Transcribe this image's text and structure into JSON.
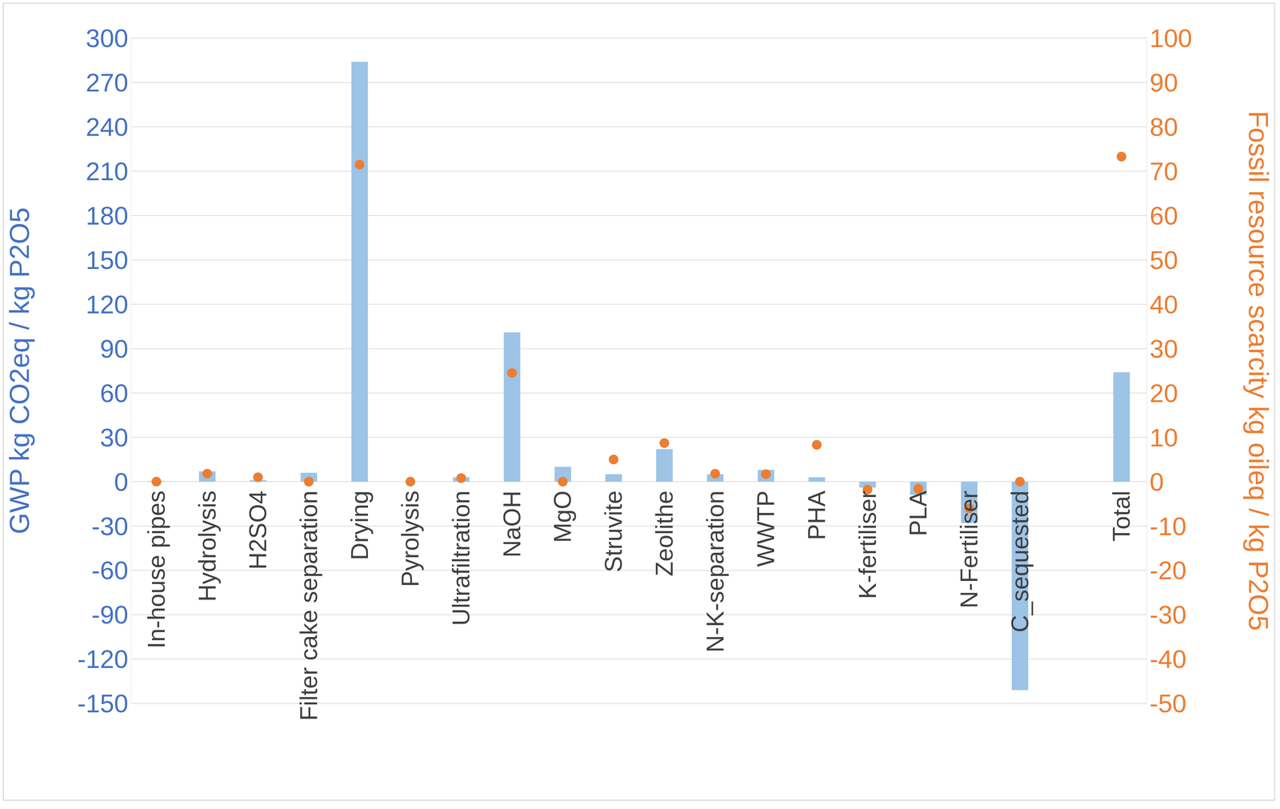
{
  "chart_data": {
    "type": "bar",
    "categories": [
      "In-house pipes",
      "Hydrolysis",
      "H2SO4",
      "Filter cake separation",
      "Drying",
      "Pyrolysis",
      "Ultrafiltration",
      "NaOH",
      "MgO",
      "Struvite",
      "Zeolithe",
      "N-K-separation",
      "WWTP",
      "PHA",
      "K-fertiliser",
      "PLA",
      "N-Fertiliser",
      "C_sequested",
      null,
      "Total"
    ],
    "y_label": "GWP kg CO2eq / kg P2O5",
    "y2_label": "Fossil resource scarcity kg oileq / kg P2O5",
    "series": [
      {
        "name": "GWP kg CO2eq / kg P2O5",
        "type": "bar",
        "color": "#9dc3e6",
        "values": [
          0.5,
          7,
          1,
          6,
          284,
          0,
          3,
          101,
          10,
          5,
          22,
          5,
          8,
          3,
          -4,
          -9,
          -28,
          -141,
          null,
          74
        ]
      },
      {
        "name": "Fossil resource scarcity kg oileq / kg P2O5",
        "type": "scatter",
        "marker": "circle",
        "axis": "y2",
        "color": "#ed7d31",
        "values": [
          0,
          1.8,
          1,
          0,
          71.5,
          0,
          0.8,
          24.5,
          0,
          5,
          8.7,
          1.8,
          1.7,
          8.3,
          -1.8,
          -1.6,
          -6,
          0,
          null,
          73.3
        ]
      }
    ],
    "ylim": [
      -150,
      300
    ],
    "yticks": [
      -150,
      -120,
      -90,
      -60,
      -30,
      0,
      30,
      60,
      90,
      120,
      150,
      180,
      210,
      240,
      270,
      300
    ],
    "y2lim": [
      -50,
      100
    ],
    "y2ticks": [
      -50,
      -40,
      -30,
      -20,
      -10,
      0,
      10,
      20,
      30,
      40,
      50,
      60,
      70,
      80,
      90,
      100
    ],
    "grid": true
  }
}
